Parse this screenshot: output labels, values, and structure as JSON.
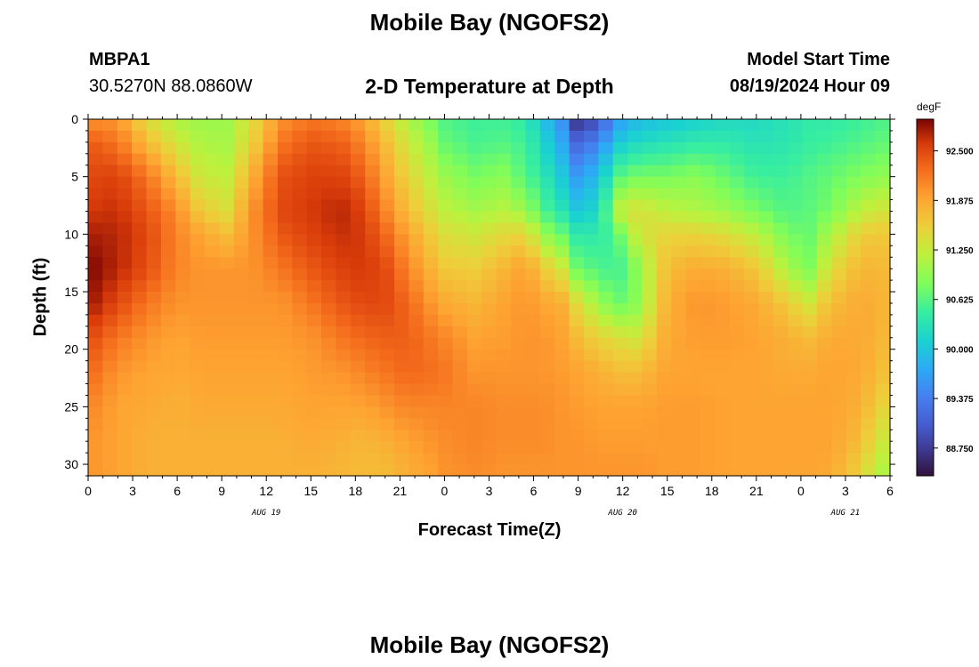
{
  "page": {
    "title": "Mobile Bay (NGOFS2)",
    "title_bottom": "Mobile Bay (NGOFS2)",
    "station_id": "MBPA1",
    "station_coords": "30.5270N  88.0860W",
    "chart_title": "2-D Temperature at Depth",
    "model_start_label": "Model Start Time",
    "model_start_value": "08/19/2024 Hour 09"
  },
  "chart_data": {
    "type": "heatmap",
    "title": "2-D Temperature at Depth",
    "xlabel": "Forecast Time(Z)",
    "ylabel": "Depth (ft)",
    "colorbar_unit": "degF",
    "x_range_hours": [
      0,
      54
    ],
    "y_range_ft": [
      0,
      31
    ],
    "y_inverted": true,
    "x_ticks": [
      {
        "h": 0,
        "label": "0"
      },
      {
        "h": 3,
        "label": "3"
      },
      {
        "h": 6,
        "label": "6"
      },
      {
        "h": 9,
        "label": "9"
      },
      {
        "h": 12,
        "label": "12"
      },
      {
        "h": 15,
        "label": "15"
      },
      {
        "h": 18,
        "label": "18"
      },
      {
        "h": 21,
        "label": "21"
      },
      {
        "h": 24,
        "label": "0"
      },
      {
        "h": 27,
        "label": "3"
      },
      {
        "h": 30,
        "label": "6"
      },
      {
        "h": 33,
        "label": "9"
      },
      {
        "h": 36,
        "label": "12"
      },
      {
        "h": 39,
        "label": "15"
      },
      {
        "h": 42,
        "label": "18"
      },
      {
        "h": 45,
        "label": "21"
      },
      {
        "h": 48,
        "label": "0"
      },
      {
        "h": 51,
        "label": "3"
      },
      {
        "h": 54,
        "label": "6"
      }
    ],
    "y_ticks": [
      0,
      5,
      10,
      15,
      20,
      25,
      30
    ],
    "date_labels": [
      {
        "h": 12,
        "label": "AUG 19"
      },
      {
        "h": 36,
        "label": "AUG 20"
      },
      {
        "h": 51,
        "label": "AUG 21"
      }
    ],
    "colorbar": {
      "min": 88.4,
      "max": 92.9,
      "tick_values": [
        92.5,
        91.875,
        91.25,
        90.625,
        90.0,
        89.375,
        88.75
      ],
      "tick_labels": [
        "92.500",
        "91.875",
        "91.250",
        "90.625",
        "90.000",
        "89.375",
        "88.750"
      ]
    },
    "profile_depths_ft": [
      0,
      2,
      5,
      8,
      10,
      13,
      16,
      19,
      22,
      25,
      28,
      31
    ],
    "profiles": [
      {
        "h": 0,
        "t": [
          92.0,
          92.4,
          92.5,
          92.6,
          92.75,
          92.9,
          92.8,
          92.5,
          92.3,
          92.1,
          92.0,
          92.0
        ]
      },
      {
        "h": 2,
        "t": [
          92.0,
          92.2,
          92.55,
          92.65,
          92.7,
          92.7,
          92.5,
          92.2,
          92.0,
          91.9,
          91.9,
          91.9
        ]
      },
      {
        "h": 4,
        "t": [
          91.4,
          91.7,
          92.2,
          92.4,
          92.5,
          92.45,
          92.2,
          92.0,
          91.9,
          91.85,
          91.8,
          91.8
        ]
      },
      {
        "h": 6,
        "t": [
          91.1,
          91.3,
          91.7,
          92.05,
          92.1,
          92.1,
          92.0,
          91.9,
          91.85,
          91.8,
          91.8,
          91.8
        ]
      },
      {
        "h": 7.5,
        "t": [
          91.0,
          91.1,
          91.3,
          91.6,
          91.9,
          92.0,
          92.0,
          91.95,
          91.9,
          91.85,
          91.8,
          91.8
        ]
      },
      {
        "h": 9.3,
        "t": [
          91.0,
          91.05,
          91.2,
          91.4,
          91.7,
          92.0,
          92.0,
          91.95,
          91.9,
          91.85,
          91.8,
          91.8
        ]
      },
      {
        "h": 11,
        "t": [
          91.4,
          91.5,
          91.8,
          92.0,
          92.0,
          92.0,
          92.0,
          91.95,
          91.9,
          91.85,
          91.8,
          91.8
        ]
      },
      {
        "h": 13,
        "t": [
          92.0,
          92.2,
          92.45,
          92.5,
          92.4,
          92.2,
          92.0,
          91.95,
          91.9,
          91.85,
          91.8,
          91.8
        ]
      },
      {
        "h": 15,
        "t": [
          92.2,
          92.4,
          92.55,
          92.6,
          92.55,
          92.4,
          92.2,
          92.0,
          91.95,
          91.9,
          91.85,
          91.8
        ]
      },
      {
        "h": 17,
        "t": [
          92.1,
          92.35,
          92.55,
          92.7,
          92.65,
          92.55,
          92.4,
          92.2,
          92.0,
          91.9,
          91.8,
          91.75
        ]
      },
      {
        "h": 18.5,
        "t": [
          91.9,
          92.1,
          92.35,
          92.55,
          92.6,
          92.6,
          92.5,
          92.3,
          92.1,
          91.9,
          91.75,
          91.7
        ]
      },
      {
        "h": 20,
        "t": [
          91.5,
          91.7,
          91.9,
          92.1,
          92.3,
          92.5,
          92.5,
          92.35,
          92.2,
          92.0,
          91.8,
          91.7
        ]
      },
      {
        "h": 21.5,
        "t": [
          91.1,
          91.3,
          91.5,
          91.7,
          91.9,
          92.1,
          92.3,
          92.35,
          92.3,
          92.1,
          91.9,
          91.8
        ]
      },
      {
        "h": 23,
        "t": [
          90.8,
          91.0,
          91.2,
          91.4,
          91.6,
          91.8,
          92.0,
          92.2,
          92.25,
          92.1,
          92.0,
          91.9
        ]
      },
      {
        "h": 24,
        "t": [
          90.6,
          90.7,
          91.0,
          91.2,
          91.4,
          91.6,
          91.85,
          92.1,
          92.2,
          92.1,
          92.05,
          92.0
        ]
      },
      {
        "h": 26,
        "t": [
          90.5,
          90.55,
          90.8,
          91.05,
          91.3,
          91.55,
          91.75,
          91.9,
          92.0,
          92.1,
          92.1,
          92.05
        ]
      },
      {
        "h": 28,
        "t": [
          90.5,
          90.6,
          90.9,
          91.15,
          91.45,
          91.75,
          91.9,
          91.95,
          92.0,
          92.05,
          92.05,
          92.0
        ]
      },
      {
        "h": 29.5,
        "t": [
          90.4,
          90.5,
          90.6,
          91.0,
          91.5,
          91.95,
          92.0,
          92.0,
          92.0,
          92.05,
          92.05,
          92.0
        ]
      },
      {
        "h": 30.5,
        "t": [
          90.0,
          90.2,
          90.4,
          90.6,
          91.0,
          91.6,
          91.9,
          92.0,
          92.0,
          92.05,
          92.05,
          92.0
        ]
      },
      {
        "h": 32,
        "t": [
          89.5,
          89.7,
          90.0,
          90.3,
          90.7,
          91.3,
          91.8,
          91.9,
          91.95,
          92.0,
          92.0,
          92.0
        ]
      },
      {
        "h": 33,
        "t": [
          88.6,
          89.1,
          89.6,
          90.0,
          90.35,
          90.7,
          91.4,
          91.7,
          91.9,
          91.95,
          92.0,
          92.0
        ]
      },
      {
        "h": 34.5,
        "t": [
          89.0,
          89.5,
          90.0,
          90.2,
          90.4,
          90.6,
          91.0,
          91.5,
          91.8,
          91.9,
          91.95,
          92.0
        ]
      },
      {
        "h": 35.5,
        "t": [
          89.6,
          90.0,
          90.6,
          91.2,
          90.6,
          90.45,
          90.7,
          91.4,
          91.7,
          91.9,
          91.95,
          92.0
        ]
      },
      {
        "h": 37,
        "t": [
          89.9,
          90.2,
          90.8,
          91.4,
          91.3,
          90.9,
          90.9,
          91.3,
          91.7,
          91.9,
          91.95,
          92.0
        ]
      },
      {
        "h": 39,
        "t": [
          90.0,
          90.3,
          90.8,
          91.2,
          91.5,
          91.7,
          91.8,
          91.85,
          91.9,
          91.95,
          91.95,
          91.95
        ]
      },
      {
        "h": 41,
        "t": [
          90.1,
          90.4,
          90.9,
          91.1,
          91.5,
          91.85,
          92.0,
          91.95,
          91.9,
          91.95,
          91.95,
          91.95
        ]
      },
      {
        "h": 43,
        "t": [
          90.2,
          90.4,
          90.7,
          91.0,
          91.4,
          91.8,
          91.95,
          91.95,
          91.9,
          91.9,
          91.9,
          91.9
        ]
      },
      {
        "h": 45,
        "t": [
          90.2,
          90.3,
          90.5,
          90.8,
          91.2,
          91.6,
          91.85,
          91.9,
          91.9,
          91.9,
          91.9,
          91.9
        ]
      },
      {
        "h": 47,
        "t": [
          90.3,
          90.35,
          90.5,
          90.6,
          90.8,
          91.1,
          91.6,
          91.8,
          91.85,
          91.9,
          91.9,
          91.9
        ]
      },
      {
        "h": 48.5,
        "t": [
          90.4,
          90.45,
          90.6,
          90.65,
          90.7,
          90.8,
          91.3,
          91.7,
          91.85,
          91.9,
          91.9,
          91.9
        ]
      },
      {
        "h": 50,
        "t": [
          90.4,
          90.5,
          90.7,
          90.8,
          91.1,
          91.4,
          91.7,
          91.85,
          91.9,
          91.9,
          91.9,
          91.85
        ]
      },
      {
        "h": 52,
        "t": [
          90.5,
          90.6,
          90.85,
          91.2,
          91.55,
          91.75,
          91.85,
          91.85,
          91.85,
          91.8,
          91.7,
          91.5
        ]
      },
      {
        "h": 53,
        "t": [
          90.55,
          90.65,
          90.9,
          91.3,
          91.6,
          91.75,
          91.8,
          91.8,
          91.75,
          91.6,
          91.4,
          91.2
        ]
      },
      {
        "h": 54,
        "t": [
          90.6,
          90.7,
          90.95,
          91.35,
          91.6,
          91.7,
          91.75,
          91.7,
          91.6,
          91.4,
          91.2,
          91.0
        ]
      }
    ]
  }
}
